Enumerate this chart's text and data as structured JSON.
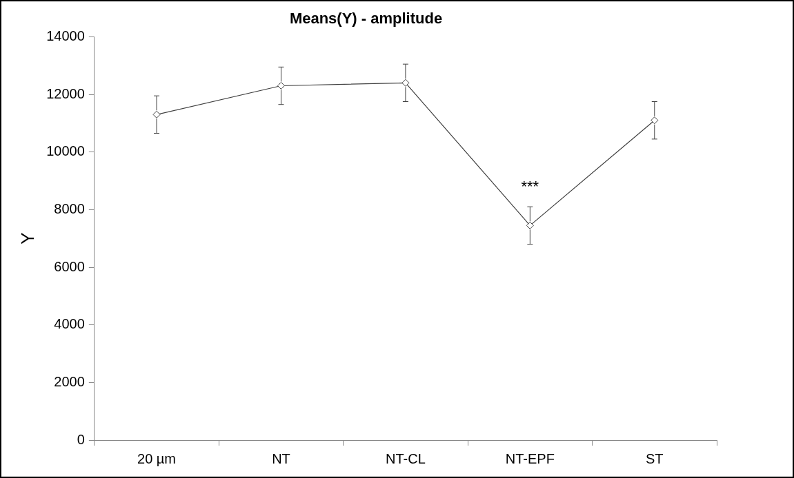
{
  "chart_data": {
    "type": "line",
    "title": "Means(Y) - amplitude",
    "ylabel": "Y",
    "categories": [
      "20 µm",
      "NT",
      "NT-CL",
      "NT-EPF",
      "ST"
    ],
    "series": [
      {
        "color": "#404040",
        "values": [
          11300,
          12300,
          12400,
          7450,
          11100
        ],
        "errors": [
          650,
          650,
          650,
          650,
          650
        ]
      }
    ],
    "ylim": [
      0,
      14000
    ],
    "yticks": [
      0,
      2000,
      4000,
      6000,
      8000,
      10000,
      12000,
      14000
    ],
    "grid": false,
    "legend": false,
    "marker": "diamond",
    "line_style": "solid",
    "annotations": [
      {
        "text": "***",
        "x": "NT-EPF",
        "y": 8100
      }
    ]
  }
}
